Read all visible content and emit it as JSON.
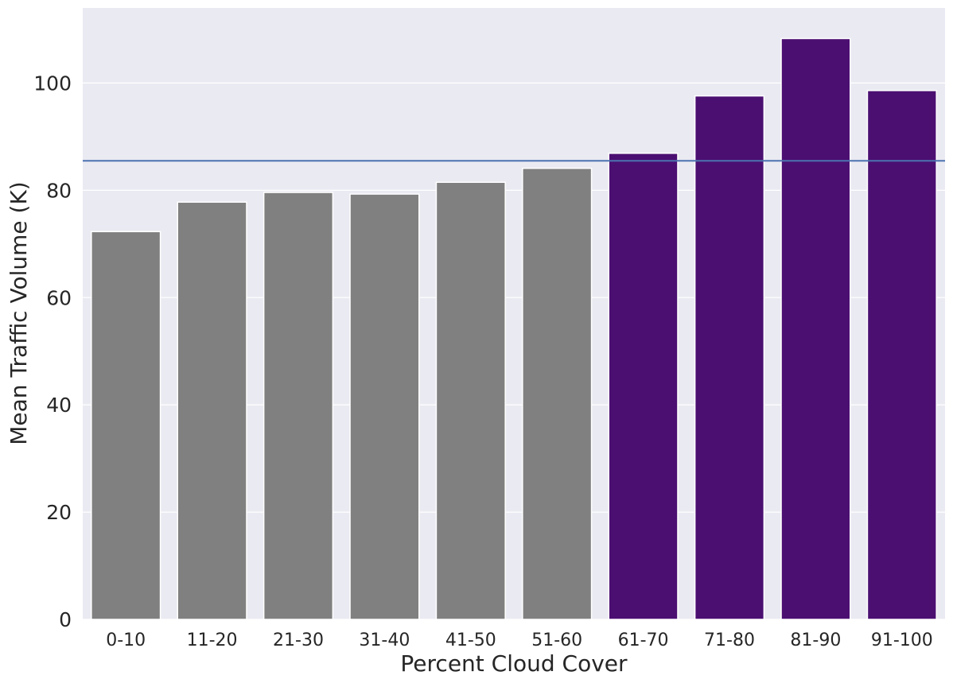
{
  "chart_data": {
    "type": "bar",
    "title": "",
    "xlabel": "Percent Cloud Cover",
    "ylabel": "Mean Traffic Volume (K)",
    "categories": [
      "0-10",
      "11-20",
      "21-30",
      "31-40",
      "41-50",
      "51-60",
      "61-70",
      "71-80",
      "81-90",
      "91-100"
    ],
    "values": [
      72.3,
      77.8,
      79.6,
      79.3,
      81.5,
      84.1,
      86.9,
      97.6,
      108.3,
      98.6
    ],
    "ylim": [
      0,
      114
    ],
    "yticks": [
      0,
      20,
      40,
      60,
      80,
      100
    ],
    "reference_line": {
      "y": 85.5,
      "orientation": "horizontal",
      "color": "#4c72b0"
    },
    "grid": true,
    "colors": {
      "background": "#eaeaf2",
      "grid": "#ffffff",
      "bar_below_reference": "#808080",
      "bar_above_reference": "#4b0f72"
    },
    "bar_colors": [
      "#808080",
      "#808080",
      "#808080",
      "#808080",
      "#808080",
      "#808080",
      "#4b0f72",
      "#4b0f72",
      "#4b0f72",
      "#4b0f72"
    ]
  }
}
